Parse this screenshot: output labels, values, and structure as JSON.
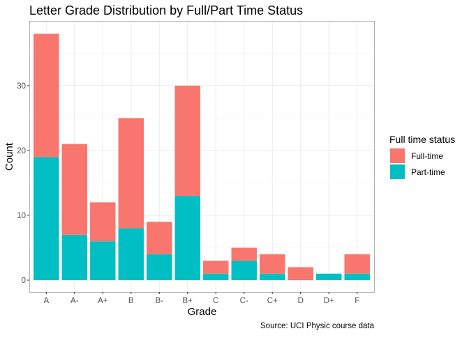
{
  "chart_data": {
    "type": "bar",
    "stacked": true,
    "title": "Letter Grade Distribution by Full/Part Time Status",
    "xlabel": "Grade",
    "ylabel": "Count",
    "caption": "Source: UCI Physic course data",
    "categories": [
      "A",
      "A-",
      "A+",
      "B",
      "B-",
      "B+",
      "C",
      "C-",
      "C+",
      "D",
      "D+",
      "F"
    ],
    "series": [
      {
        "name": "Full-time",
        "color": "#F8766D",
        "values": [
          19,
          14,
          6,
          17,
          5,
          17,
          2,
          2,
          3,
          2,
          0,
          3
        ]
      },
      {
        "name": "Part-time",
        "color": "#00BFC4",
        "values": [
          19,
          7,
          6,
          8,
          4,
          13,
          1,
          3,
          1,
          0,
          1,
          1
        ]
      }
    ],
    "stack_order": [
      "Part-time",
      "Full-time"
    ],
    "ylim": [
      0,
      40
    ],
    "yticks": [
      "0",
      "10",
      "20",
      "30"
    ],
    "grid": true,
    "legend": {
      "title": "Full time status",
      "placement": "right",
      "entries": [
        "Full-time",
        "Part-time"
      ]
    }
  }
}
